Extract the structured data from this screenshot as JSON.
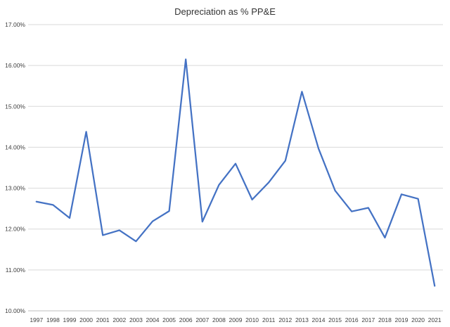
{
  "chart_data": {
    "type": "line",
    "title": "Depreciation as % PP&E",
    "xlabel": "",
    "ylabel": "",
    "x": [
      "1997",
      "1998",
      "1999",
      "2000",
      "2001",
      "2002",
      "2003",
      "2004",
      "2005",
      "2006",
      "2007",
      "2008",
      "2009",
      "2010",
      "2011",
      "2012",
      "2013",
      "2014",
      "2015",
      "2016",
      "2017",
      "2018",
      "2019",
      "2020",
      "2021"
    ],
    "series": [
      {
        "values": [
          12.67,
          12.59,
          12.27,
          14.38,
          11.85,
          11.97,
          11.7,
          12.19,
          12.44,
          16.15,
          12.18,
          13.08,
          13.6,
          12.72,
          13.14,
          13.67,
          15.36,
          13.97,
          12.94,
          12.43,
          12.52,
          11.79,
          12.85,
          12.74,
          10.61
        ],
        "color": "#4472c4"
      }
    ],
    "ylim": [
      10,
      17
    ],
    "yticks": [
      "10.00%",
      "11.00%",
      "12.00%",
      "13.00%",
      "14.00%",
      "15.00%",
      "16.00%",
      "17.00%"
    ],
    "grid": true,
    "legend": "none"
  }
}
